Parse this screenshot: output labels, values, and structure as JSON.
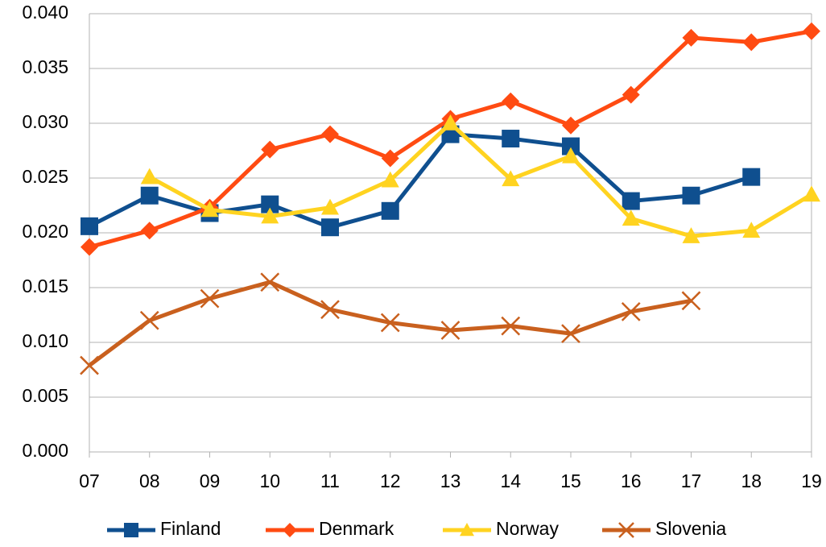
{
  "chart_data": {
    "type": "line",
    "categories": [
      "07",
      "08",
      "09",
      "10",
      "11",
      "12",
      "13",
      "14",
      "15",
      "16",
      "17",
      "18",
      "19"
    ],
    "series": [
      {
        "name": "Finland",
        "color": "#0f4f8f",
        "marker": "square",
        "values": [
          0.0206,
          0.0234,
          0.0218,
          0.0226,
          0.0205,
          0.022,
          0.029,
          0.0286,
          0.0279,
          0.0229,
          0.0234,
          0.0251,
          null
        ]
      },
      {
        "name": "Denmark",
        "color": "#ff4b12",
        "marker": "diamond",
        "values": [
          0.0187,
          0.0202,
          0.0223,
          0.0276,
          0.029,
          0.0268,
          0.0304,
          0.032,
          0.0298,
          0.0326,
          0.0378,
          0.0374,
          0.0384
        ]
      },
      {
        "name": "Norway",
        "color": "#ffd320",
        "marker": "triangle",
        "values": [
          null,
          0.0251,
          0.0221,
          0.0215,
          0.0223,
          0.0248,
          0.03,
          0.0249,
          0.027,
          0.0213,
          0.0197,
          0.0202,
          0.0235
        ]
      },
      {
        "name": "Slovenia",
        "color": "#c9601e",
        "marker": "x",
        "values": [
          0.0079,
          0.012,
          0.014,
          0.0155,
          0.013,
          0.0118,
          0.0111,
          0.0115,
          0.0108,
          0.0128,
          0.0138,
          null,
          null
        ]
      }
    ],
    "ylim": [
      0,
      0.04
    ],
    "yticks": [
      {
        "value": 0,
        "label": "0.000"
      },
      {
        "value": 0.005,
        "label": "0.005"
      },
      {
        "value": 0.01,
        "label": "0.010"
      },
      {
        "value": 0.015,
        "label": "0.015"
      },
      {
        "value": 0.02,
        "label": "0.020"
      },
      {
        "value": 0.025,
        "label": "0.025"
      },
      {
        "value": 0.03,
        "label": "0.030"
      },
      {
        "value": 0.035,
        "label": "0.035"
      },
      {
        "value": 0.04,
        "label": "0.040"
      }
    ],
    "grid": true,
    "legend": "bottom"
  }
}
